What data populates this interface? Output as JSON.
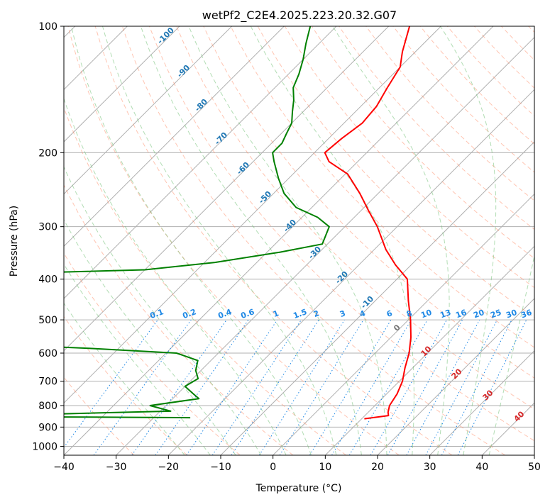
{
  "chart_data": {
    "type": "skew-t log-p sounding",
    "title": "wetPf2_C2E4.2025.223.20.32.G07",
    "xlabel": "Temperature (°C)",
    "ylabel": "Pressure (hPa)",
    "xlim": [
      -40,
      50
    ],
    "ylim": [
      1050,
      100
    ],
    "y_scale": "log",
    "grid": true,
    "x_ticks": [
      "−40",
      "−30",
      "−20",
      "−10",
      "0",
      "10",
      "20",
      "30",
      "40",
      "50"
    ],
    "y_ticks": [
      "100",
      "200",
      "300",
      "400",
      "500",
      "600",
      "700",
      "800",
      "900",
      "1000"
    ],
    "series": [
      {
        "role": "temperature",
        "color": "#ff0000",
        "points": [
          {
            "t": 10.5,
            "p": 860
          },
          {
            "t": 14.5,
            "p": 845
          },
          {
            "t": 13.8,
            "p": 830
          },
          {
            "t": 12.8,
            "p": 800
          },
          {
            "t": 12.0,
            "p": 750
          },
          {
            "t": 10.6,
            "p": 700
          },
          {
            "t": 8.5,
            "p": 650
          },
          {
            "t": 6.5,
            "p": 600
          },
          {
            "t": 3.8,
            "p": 550
          },
          {
            "t": 0.4,
            "p": 500
          },
          {
            "t": -3.7,
            "p": 450
          },
          {
            "t": -8.0,
            "p": 400
          },
          {
            "t": -13.0,
            "p": 370
          },
          {
            "t": -17.8,
            "p": 340
          },
          {
            "t": -23.8,
            "p": 300
          },
          {
            "t": -28.5,
            "p": 275
          },
          {
            "t": -33.5,
            "p": 250
          },
          {
            "t": -39.5,
            "p": 225
          },
          {
            "t": -45.5,
            "p": 210
          },
          {
            "t": -48.0,
            "p": 200
          },
          {
            "t": -47.5,
            "p": 185
          },
          {
            "t": -46.5,
            "p": 170
          },
          {
            "t": -47.0,
            "p": 155
          },
          {
            "t": -48.5,
            "p": 140
          },
          {
            "t": -50.0,
            "p": 125
          },
          {
            "t": -52.5,
            "p": 115
          },
          {
            "t": -56.0,
            "p": 100
          }
        ]
      },
      {
        "role": "dewpoint",
        "color": "#008000",
        "points": [
          {
            "t": -23.0,
            "p": 855
          },
          {
            "t": -59.0,
            "p": 850
          },
          {
            "t": -68.0,
            "p": 849
          },
          {
            "t": -28.0,
            "p": 825
          },
          {
            "t": -33.0,
            "p": 800
          },
          {
            "t": -25.0,
            "p": 770
          },
          {
            "t": -27.0,
            "p": 750
          },
          {
            "t": -30.0,
            "p": 720
          },
          {
            "t": -29.0,
            "p": 690
          },
          {
            "t": -31.0,
            "p": 660
          },
          {
            "t": -32.5,
            "p": 625
          },
          {
            "t": -38.0,
            "p": 600
          },
          {
            "t": -55.0,
            "p": 585
          },
          {
            "t": -62.0,
            "p": 580
          },
          {
            "t": -92.0,
            "p": 390
          },
          {
            "t": -60.0,
            "p": 380
          },
          {
            "t": -48.0,
            "p": 365
          },
          {
            "t": -37.5,
            "p": 345
          },
          {
            "t": -31.0,
            "p": 330
          },
          {
            "t": -33.0,
            "p": 300
          },
          {
            "t": -37.0,
            "p": 285
          },
          {
            "t": -43.0,
            "p": 270
          },
          {
            "t": -48.0,
            "p": 250
          },
          {
            "t": -52.0,
            "p": 230
          },
          {
            "t": -56.0,
            "p": 210
          },
          {
            "t": -58.0,
            "p": 200
          },
          {
            "t": -58.0,
            "p": 190
          },
          {
            "t": -59.0,
            "p": 180
          },
          {
            "t": -60.0,
            "p": 170
          },
          {
            "t": -62.0,
            "p": 160
          },
          {
            "t": -64.0,
            "p": 150
          },
          {
            "t": -66.5,
            "p": 140
          },
          {
            "t": -68.0,
            "p": 130
          },
          {
            "t": -70.0,
            "p": 120
          },
          {
            "t": -72.5,
            "p": 110
          },
          {
            "t": -75.0,
            "p": 100
          }
        ]
      }
    ],
    "dry_adiabat_labels": [
      "-100",
      "-90",
      "-80",
      "-70",
      "-60",
      "-50",
      "-40",
      "-30",
      "-20",
      "-10"
    ],
    "mixing_ratio_labels": [
      "0.1",
      "0.2",
      "0.4",
      "0.6",
      "1",
      "1.5",
      "2",
      "3",
      "4",
      "6",
      "8",
      "10",
      "13",
      "16",
      "20",
      "25",
      "30",
      "36"
    ],
    "mixing_ratio_values": [
      0.1,
      0.2,
      0.4,
      0.6,
      1,
      1.5,
      2,
      3,
      4,
      6,
      8,
      10,
      13,
      16,
      20,
      25,
      30,
      36
    ],
    "moist_adiabat_labels": [
      "0",
      "10",
      "20",
      "30",
      "40"
    ]
  },
  "colors": {
    "temperature": "#ff0000",
    "dewpoint": "#008000",
    "dry_adiabat": "#ff8c66",
    "moist_adiabat": "#66bb6a",
    "mixing_ratio": "#1e88e5",
    "isotherm": "#808080"
  }
}
